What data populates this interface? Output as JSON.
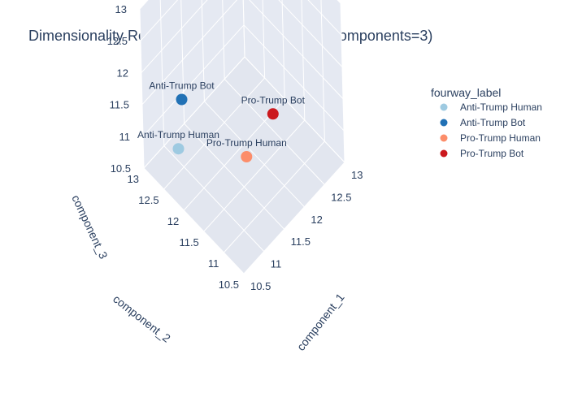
{
  "chart_data": {
    "type": "scatter",
    "title": "Dimensionality Reduction Centroids (UMAP n_components=3)",
    "legend": {
      "title": "fourway_label",
      "placement": "top-right"
    },
    "axes": {
      "x": {
        "label": "component_1",
        "range": [
          10.5,
          13
        ],
        "ticks": [
          "10.5",
          "11",
          "11.5",
          "12",
          "12.5",
          "13"
        ]
      },
      "y": {
        "label": "component_2",
        "range": [
          10.5,
          13
        ],
        "ticks": [
          "10.5",
          "11",
          "11.5",
          "12",
          "12.5",
          "13"
        ]
      },
      "z": {
        "label": "component_3",
        "range": [
          10.5,
          13
        ],
        "ticks": [
          "10.5",
          "11",
          "11.5",
          "12",
          "12.5",
          "13"
        ]
      }
    },
    "series": [
      {
        "name": "Anti-Trump Human",
        "color": "#9ecae1",
        "x": 10.5,
        "y": 12.1,
        "z": 11.4,
        "point_label": "Anti-Trump Human"
      },
      {
        "name": "Anti-Trump Bot",
        "color": "#2171b5",
        "x": 10.75,
        "y": 12.25,
        "z": 11.9,
        "point_label": "Anti-Trump Bot"
      },
      {
        "name": "Pro-Trump Human",
        "color": "#fc8d6a",
        "x": 11.2,
        "y": 11.1,
        "z": 11.45,
        "point_label": "Pro-Trump Human"
      },
      {
        "name": "Pro-Trump Bot",
        "color": "#cb181d",
        "x": 11.3,
        "y": 10.5,
        "z": 12.45,
        "point_label": "Pro-Trump Bot"
      }
    ],
    "grid": true
  }
}
